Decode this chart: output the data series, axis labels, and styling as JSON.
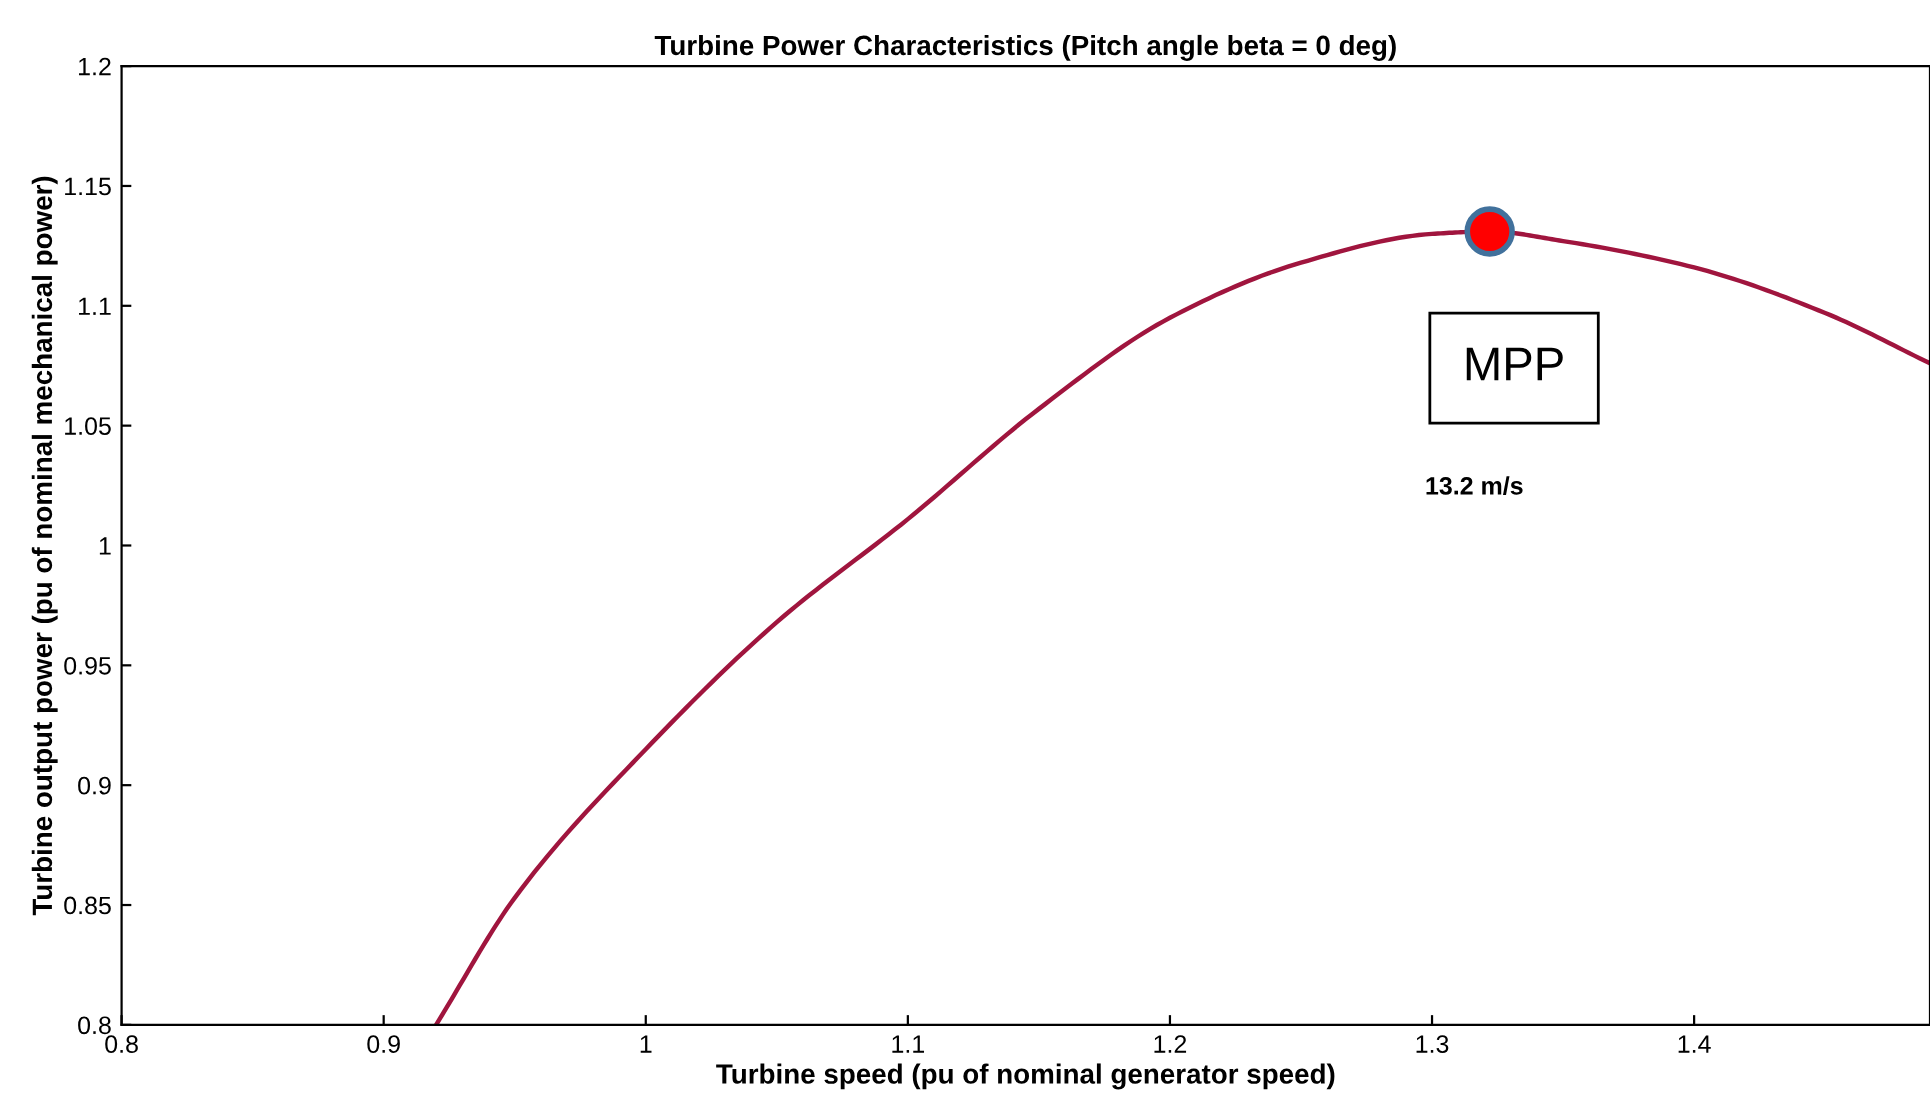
{
  "chart_data": {
    "type": "line",
    "title": "Turbine Power Characteristics (Pitch angle beta = 0 deg)",
    "xlabel": "Turbine speed (pu of nominal generator speed)",
    "ylabel": "Turbine output power (pu of nominal mechanical power)",
    "series": [
      {
        "color": "#a0153e",
        "x": [
          0.92,
          0.95,
          1.0,
          1.05,
          1.1,
          1.15,
          1.2,
          1.25,
          1.3,
          1.322,
          1.35,
          1.4,
          1.45,
          1.49
        ],
        "values": [
          0.8,
          0.853,
          0.915,
          0.968,
          1.011,
          1.057,
          1.095,
          1.118,
          1.13,
          1.131,
          1.127,
          1.116,
          1.097,
          1.076
        ]
      },
      {
        "type": "scatter",
        "color": "#ff0000",
        "x": [
          1.322
        ],
        "values": [
          1.131
        ]
      }
    ],
    "annotations": [
      "MPP",
      "13.2 m/s"
    ],
    "xlim": [
      0.8,
      1.49
    ],
    "ylim": [
      0.8,
      1.2
    ],
    "xticks": [
      0.8,
      0.9,
      1,
      1.1,
      1.2,
      1.3,
      1.4
    ],
    "yticks": [
      0.8,
      0.85,
      0.9,
      0.95,
      1,
      1.05,
      1.1,
      1.15,
      1.2
    ],
    "grid": false,
    "legend": false
  }
}
